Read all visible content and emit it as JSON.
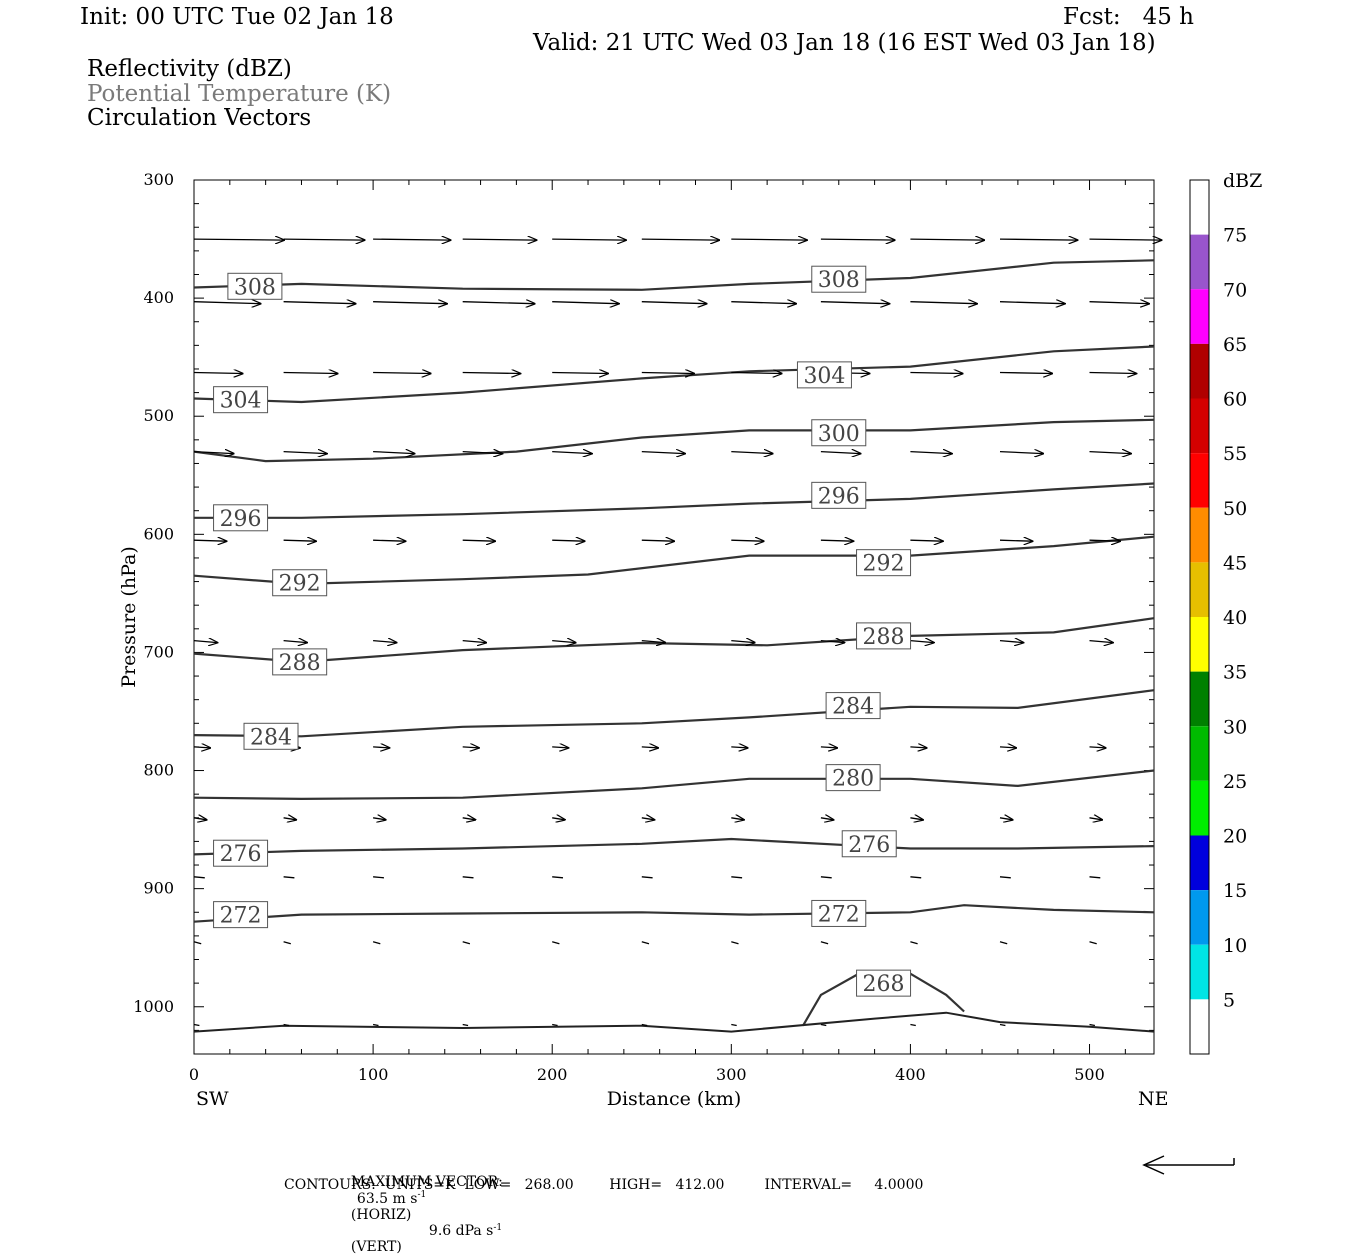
{
  "header": {
    "init": "Init: 00 UTC Tue 02 Jan 18",
    "fcst": "Fcst:   45 h",
    "valid": "Valid: 21 UTC Wed 03 Jan 18 (16 EST Wed 03 Jan 18)",
    "legend_reflectivity": "Reflectivity (dBZ)",
    "legend_theta": "Potential Temperature (K)",
    "legend_vectors": "Circulation Vectors",
    "theta_color": "#7a7a7a"
  },
  "footer": {
    "max_vector_label": "MAXIMUM VECTOR:",
    "max_vector_horiz": "63.5 m s",
    "horiz_tag": "(HORIZ)",
    "max_vector_vert": "9.6 dPa s",
    "vert_tag": "(VERT)",
    "exponent": "-1",
    "contours_line": "CONTOURS:  UNITS=K  LOW=   268.00        HIGH=   412.00         INTERVAL=     4.0000"
  },
  "chart_data": {
    "type": "line",
    "title": "Potential Temperature (K)",
    "xlabel": "Distance (km)",
    "ylabel": "Pressure (hPa)",
    "x_ticks": [
      0,
      100,
      200,
      300,
      400,
      500
    ],
    "y_ticks": [
      300,
      400,
      500,
      600,
      700,
      800,
      900,
      1000
    ],
    "xlim": [
      0,
      536
    ],
    "ylim": [
      300,
      1040
    ],
    "x_end_labels": {
      "left": "SW",
      "right": "NE"
    },
    "colorbar": {
      "title": "dBZ",
      "levels": [
        5,
        10,
        15,
        20,
        25,
        30,
        35,
        40,
        45,
        50,
        55,
        60,
        65,
        70,
        75
      ],
      "colors": [
        "#ffffff",
        "#00e5e5",
        "#0099ee",
        "#0000dd",
        "#00ee00",
        "#00bb00",
        "#008000",
        "#ffff00",
        "#e6bf00",
        "#ff8c00",
        "#ff0000",
        "#d40000",
        "#b00000",
        "#ff00ff",
        "#9955cc",
        "#ffffff"
      ]
    },
    "series": [
      {
        "name": "308",
        "x": [
          0,
          60,
          150,
          250,
          310,
          400,
          480,
          536
        ],
        "y": [
          391,
          388,
          392,
          393,
          388,
          383,
          370,
          368
        ]
      },
      {
        "name": "304",
        "x": [
          0,
          60,
          150,
          250,
          310,
          400,
          480,
          536
        ],
        "y": [
          485,
          488,
          480,
          468,
          462,
          458,
          445,
          441
        ]
      },
      {
        "name": "300",
        "x": [
          0,
          40,
          100,
          180,
          250,
          310,
          400,
          480,
          536
        ],
        "y": [
          530,
          538,
          536,
          530,
          518,
          512,
          512,
          505,
          503
        ]
      },
      {
        "name": "296",
        "x": [
          0,
          60,
          150,
          250,
          310,
          400,
          480,
          536
        ],
        "y": [
          586,
          586,
          583,
          578,
          574,
          570,
          562,
          557
        ]
      },
      {
        "name": "292",
        "x": [
          0,
          60,
          150,
          220,
          310,
          400,
          480,
          536
        ],
        "y": [
          635,
          642,
          638,
          634,
          618,
          618,
          610,
          602
        ]
      },
      {
        "name": "288",
        "x": [
          0,
          60,
          150,
          250,
          320,
          400,
          480,
          536
        ],
        "y": [
          701,
          708,
          698,
          692,
          694,
          686,
          683,
          671
        ]
      },
      {
        "name": "284",
        "x": [
          0,
          60,
          150,
          250,
          310,
          400,
          460,
          536
        ],
        "y": [
          770,
          771,
          763,
          760,
          755,
          746,
          747,
          732
        ]
      },
      {
        "name": "280",
        "x": [
          0,
          60,
          150,
          250,
          310,
          400,
          460,
          536
        ],
        "y": [
          823,
          824,
          823,
          815,
          807,
          807,
          813,
          800
        ]
      },
      {
        "name": "276",
        "x": [
          0,
          60,
          150,
          250,
          300,
          400,
          460,
          536
        ],
        "y": [
          871,
          868,
          866,
          862,
          858,
          866,
          866,
          864
        ]
      },
      {
        "name": "272",
        "x": [
          0,
          60,
          150,
          250,
          310,
          400,
          430,
          480,
          536
        ],
        "y": [
          928,
          922,
          921,
          920,
          922,
          920,
          914,
          918,
          920
        ]
      },
      {
        "name": "268",
        "x": [
          340,
          350,
          370,
          400,
          420,
          430
        ],
        "y": [
          1016,
          990,
          973,
          972,
          990,
          1004
        ]
      }
    ],
    "surface_line": {
      "x": [
        0,
        50,
        150,
        250,
        300,
        380,
        420,
        450,
        500,
        536
      ],
      "y": [
        1021,
        1016,
        1018,
        1016,
        1021,
        1010,
        1005,
        1013,
        1017,
        1021
      ]
    },
    "contour_labels": [
      {
        "text": "308",
        "x": 34,
        "y": 390
      },
      {
        "text": "308",
        "x": 360,
        "y": 384
      },
      {
        "text": "304",
        "x": 26,
        "y": 486
      },
      {
        "text": "304",
        "x": 352,
        "y": 465
      },
      {
        "text": "300",
        "x": 360,
        "y": 514
      },
      {
        "text": "296",
        "x": 26,
        "y": 586
      },
      {
        "text": "296",
        "x": 360,
        "y": 567
      },
      {
        "text": "292",
        "x": 59,
        "y": 641
      },
      {
        "text": "292",
        "x": 385,
        "y": 624
      },
      {
        "text": "288",
        "x": 59,
        "y": 708
      },
      {
        "text": "288",
        "x": 385,
        "y": 686
      },
      {
        "text": "284",
        "x": 43,
        "y": 771
      },
      {
        "text": "284",
        "x": 368,
        "y": 745
      },
      {
        "text": "280",
        "x": 368,
        "y": 806
      },
      {
        "text": "276",
        "x": 26,
        "y": 870
      },
      {
        "text": "276",
        "x": 377,
        "y": 862
      },
      {
        "text": "272",
        "x": 26,
        "y": 922
      },
      {
        "text": "272",
        "x": 360,
        "y": 921
      },
      {
        "text": "268",
        "x": 385,
        "y": 980
      }
    ],
    "vector_rows": [
      {
        "p": 350,
        "u": [
          50,
          45,
          43,
          41,
          41,
          43,
          42,
          41,
          41,
          43,
          40
        ]
      },
      {
        "p": 403,
        "u": [
          37,
          40,
          41,
          40,
          37,
          36,
          36,
          38,
          37,
          36,
          33
        ]
      },
      {
        "p": 463,
        "u": [
          27,
          30,
          32,
          32,
          31,
          29,
          28,
          27,
          29,
          29,
          26
        ]
      },
      {
        "p": 530,
        "u": [
          22,
          24,
          23,
          22,
          22,
          24,
          23,
          22,
          23,
          24,
          23
        ]
      },
      {
        "p": 605,
        "u": [
          18,
          18,
          18,
          18,
          18,
          18,
          18,
          18,
          18,
          18,
          17
        ]
      },
      {
        "p": 690,
        "u": [
          13,
          13,
          13,
          13,
          13,
          13,
          13,
          13,
          13,
          13,
          13
        ]
      },
      {
        "p": 780,
        "u": [
          9,
          9,
          9,
          9,
          9,
          9,
          9,
          9,
          9,
          9,
          9
        ]
      },
      {
        "p": 840,
        "u": [
          7,
          7,
          7,
          7,
          7,
          7,
          7,
          7,
          7,
          7,
          7
        ]
      },
      {
        "p": 890,
        "u": [
          6,
          6,
          6,
          6,
          6,
          6,
          6,
          6,
          6,
          6,
          6
        ]
      },
      {
        "p": 945,
        "u": [
          4,
          4,
          4,
          4,
          4,
          4,
          4,
          4,
          4,
          4,
          4
        ]
      },
      {
        "p": 1015,
        "u": [
          3,
          3,
          3,
          3,
          3,
          3,
          3,
          3,
          3,
          3,
          3
        ]
      }
    ],
    "vector_x": [
      0,
      50,
      100,
      150,
      200,
      250,
      300,
      350,
      400,
      450,
      500
    ]
  }
}
